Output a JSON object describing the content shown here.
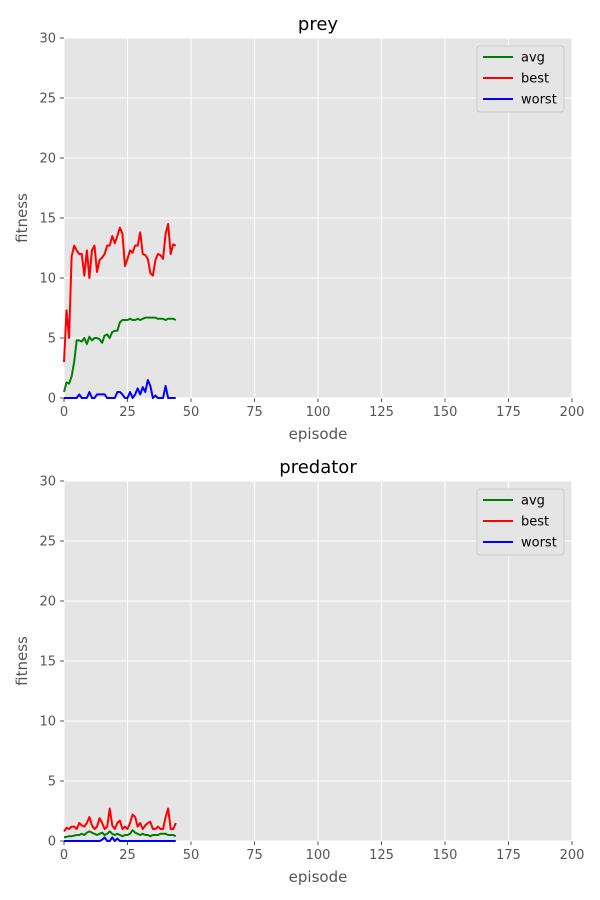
{
  "chart_data": [
    {
      "type": "line",
      "title": "prey",
      "xlabel": "episode",
      "ylabel": "fitness",
      "xlim": [
        0,
        200
      ],
      "ylim": [
        0,
        30
      ],
      "xticks": [
        0,
        25,
        50,
        75,
        100,
        125,
        150,
        175,
        200
      ],
      "yticks": [
        0,
        5,
        10,
        15,
        20,
        25,
        30
      ],
      "grid": true,
      "legend_position": "top-right",
      "x": [
        0,
        1,
        2,
        3,
        4,
        5,
        6,
        7,
        8,
        9,
        10,
        11,
        12,
        13,
        14,
        15,
        16,
        17,
        18,
        19,
        20,
        21,
        22,
        23,
        24,
        25,
        26,
        27,
        28,
        29,
        30,
        31,
        32,
        33,
        34,
        35,
        36,
        37,
        38,
        39,
        40,
        41,
        42,
        43,
        44
      ],
      "series": [
        {
          "name": "avg",
          "color": "#008000",
          "values": [
            0.5,
            1.3,
            1.2,
            1.8,
            3.0,
            4.8,
            4.8,
            4.7,
            5.0,
            4.5,
            5.1,
            4.8,
            5.0,
            5.0,
            4.9,
            4.6,
            5.2,
            5.3,
            5.0,
            5.5,
            5.6,
            5.6,
            6.3,
            6.5,
            6.5,
            6.5,
            6.6,
            6.5,
            6.5,
            6.6,
            6.5,
            6.6,
            6.7,
            6.7,
            6.7,
            6.7,
            6.7,
            6.6,
            6.6,
            6.6,
            6.5,
            6.6,
            6.6,
            6.6,
            6.5
          ]
        },
        {
          "name": "best",
          "color": "#ff0000",
          "values": [
            3.0,
            7.3,
            5.0,
            11.8,
            12.7,
            12.3,
            12.0,
            12.0,
            10.2,
            12.3,
            10.0,
            12.3,
            12.7,
            10.5,
            11.5,
            11.7,
            12.0,
            12.7,
            12.7,
            13.5,
            12.9,
            13.5,
            14.2,
            13.7,
            11.0,
            11.6,
            12.3,
            12.1,
            12.7,
            12.7,
            13.8,
            12.0,
            11.9,
            11.6,
            10.4,
            10.2,
            11.5,
            12.0,
            11.9,
            11.6,
            13.7,
            14.5,
            12.0,
            12.8,
            12.7
          ]
        },
        {
          "name": "worst",
          "color": "#0000ff",
          "values": [
            0,
            0,
            0,
            0,
            0,
            0,
            0.3,
            0,
            0,
            0,
            0.5,
            0,
            0,
            0.3,
            0.3,
            0.3,
            0.3,
            0,
            0,
            0,
            0,
            0.5,
            0.5,
            0.3,
            0,
            0,
            0.5,
            0,
            0.3,
            0.8,
            0.3,
            0.9,
            0.5,
            1.5,
            1.0,
            0,
            0.2,
            0,
            0,
            0,
            1.0,
            0,
            0,
            0,
            0
          ]
        }
      ]
    },
    {
      "type": "line",
      "title": "predator",
      "xlabel": "episode",
      "ylabel": "fitness",
      "xlim": [
        0,
        200
      ],
      "ylim": [
        0,
        30
      ],
      "xticks": [
        0,
        25,
        50,
        75,
        100,
        125,
        150,
        175,
        200
      ],
      "yticks": [
        0,
        5,
        10,
        15,
        20,
        25,
        30
      ],
      "grid": true,
      "legend_position": "top-right",
      "x": [
        0,
        1,
        2,
        3,
        4,
        5,
        6,
        7,
        8,
        9,
        10,
        11,
        12,
        13,
        14,
        15,
        16,
        17,
        18,
        19,
        20,
        21,
        22,
        23,
        24,
        25,
        26,
        27,
        28,
        29,
        30,
        31,
        32,
        33,
        34,
        35,
        36,
        37,
        38,
        39,
        40,
        41,
        42,
        43,
        44
      ],
      "series": [
        {
          "name": "avg",
          "color": "#008000",
          "values": [
            0.3,
            0.35,
            0.4,
            0.4,
            0.45,
            0.5,
            0.5,
            0.6,
            0.5,
            0.7,
            0.8,
            0.7,
            0.6,
            0.5,
            0.6,
            0.7,
            0.5,
            0.6,
            0.8,
            0.6,
            0.5,
            0.6,
            0.5,
            0.4,
            0.5,
            0.5,
            0.6,
            0.9,
            0.7,
            0.6,
            0.5,
            0.6,
            0.5,
            0.5,
            0.4,
            0.5,
            0.5,
            0.5,
            0.6,
            0.6,
            0.6,
            0.5,
            0.5,
            0.5,
            0.4
          ]
        },
        {
          "name": "best",
          "color": "#ff0000",
          "values": [
            0.8,
            1.1,
            1.0,
            1.2,
            1.2,
            1.0,
            1.5,
            1.3,
            1.2,
            1.5,
            2.0,
            1.3,
            1.0,
            1.2,
            1.9,
            1.5,
            1.0,
            1.2,
            2.7,
            1.3,
            1.0,
            1.5,
            1.7,
            1.0,
            1.2,
            1.0,
            1.5,
            2.2,
            2.0,
            1.2,
            1.5,
            1.0,
            1.3,
            1.5,
            1.6,
            1.0,
            1.0,
            1.2,
            1.0,
            1.0,
            2.0,
            2.7,
            1.0,
            1.0,
            1.5
          ]
        },
        {
          "name": "worst",
          "color": "#0000ff",
          "values": [
            0,
            0,
            0,
            0,
            0,
            0,
            0,
            0,
            0,
            0,
            0,
            0,
            0,
            0,
            0,
            0.1,
            0.3,
            0,
            0,
            0.3,
            0,
            0.2,
            0,
            0,
            0,
            0,
            0,
            0,
            0,
            0,
            0,
            0,
            0,
            0,
            0,
            0,
            0,
            0,
            0,
            0,
            0,
            0,
            0,
            0,
            0
          ]
        }
      ]
    }
  ]
}
